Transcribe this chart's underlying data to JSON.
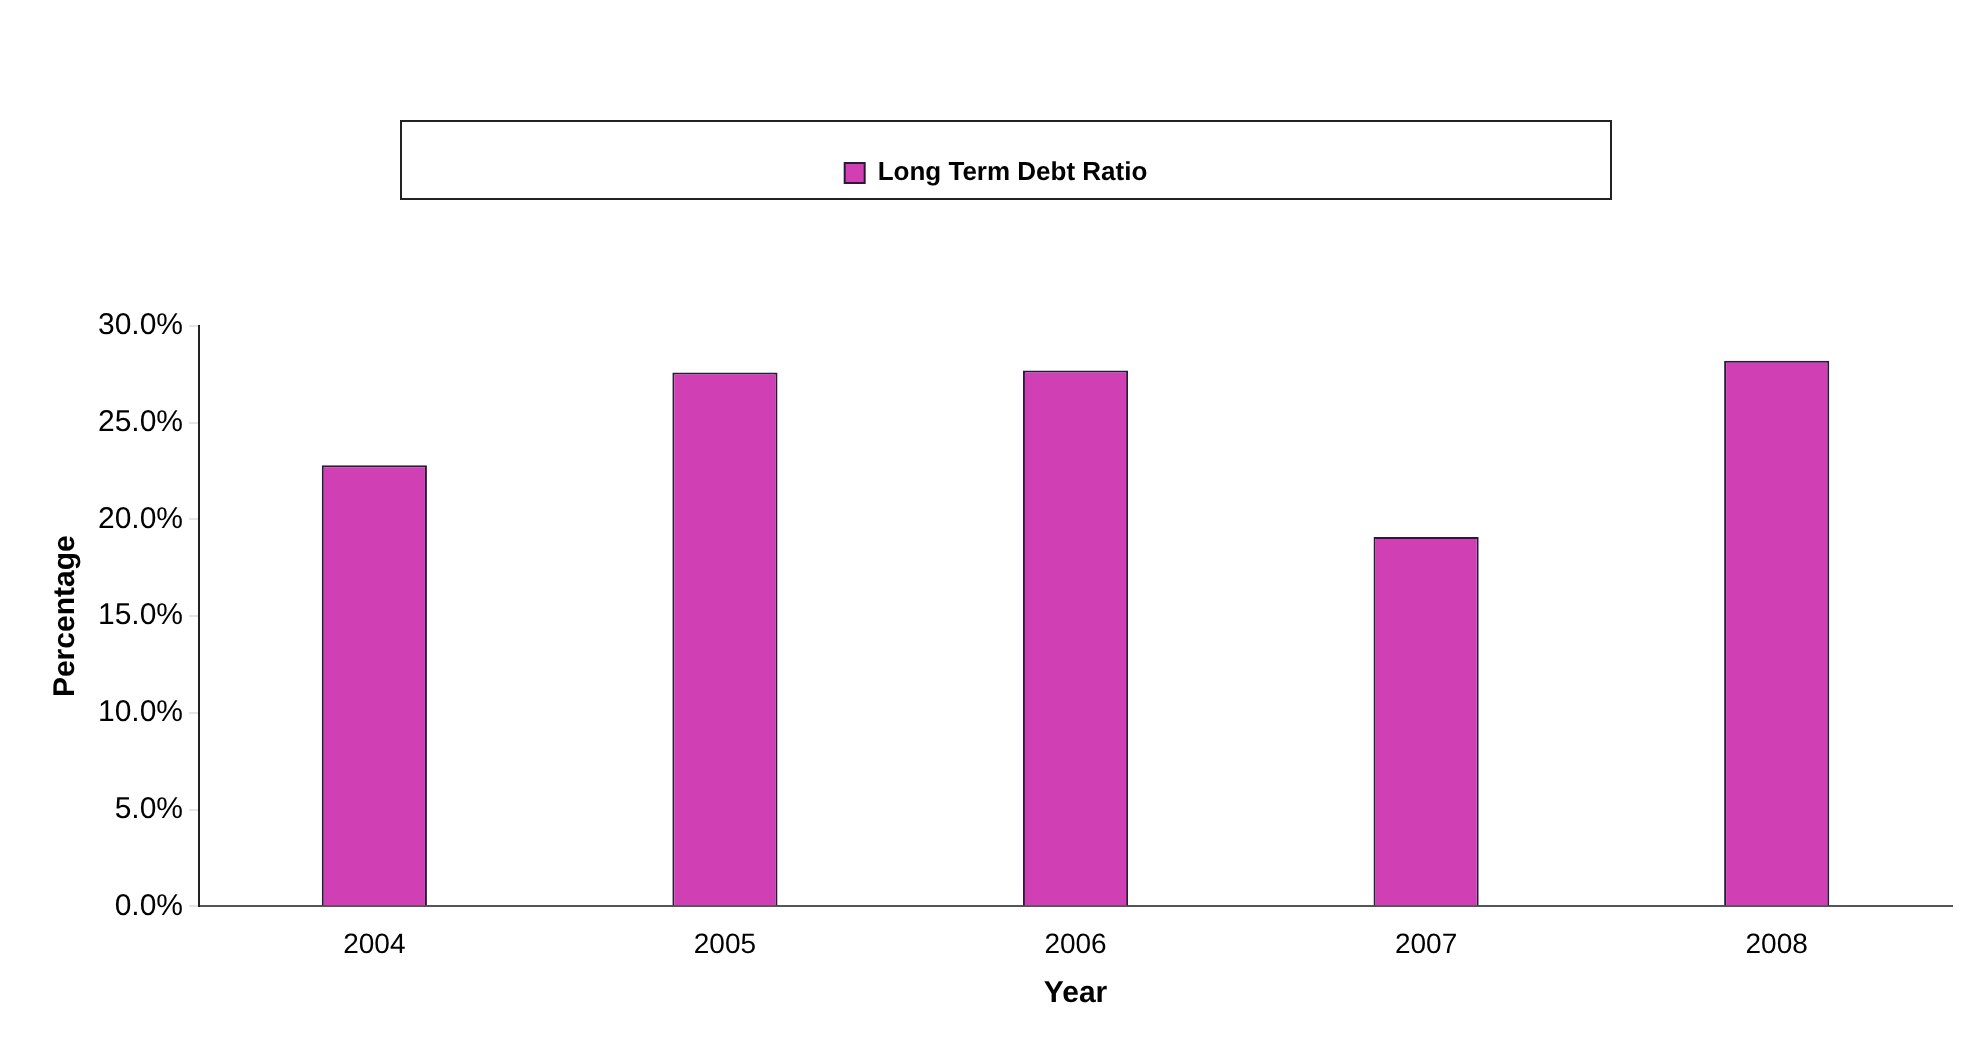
{
  "chart_data": {
    "type": "bar",
    "xlabel": "Year",
    "ylabel": "Percentage",
    "categories": [
      "2004",
      "2005",
      "2006",
      "2007",
      "2008"
    ],
    "series": [
      {
        "name": "Long Term Debt Ratio",
        "color": "#d03fb4",
        "values": [
          22.8,
          27.6,
          27.7,
          19.1,
          28.2
        ]
      }
    ],
    "ylim": [
      0,
      30
    ],
    "yticks": [
      {
        "value": 0,
        "label": "0.0%"
      },
      {
        "value": 5,
        "label": "5.0%"
      },
      {
        "value": 10,
        "label": "10.0%"
      },
      {
        "value": 15,
        "label": "15.0%"
      },
      {
        "value": 20,
        "label": "20.0%"
      },
      {
        "value": 25,
        "label": "25.0%"
      },
      {
        "value": 30,
        "label": "30.0%"
      }
    ],
    "grid": false,
    "legend": "top"
  }
}
